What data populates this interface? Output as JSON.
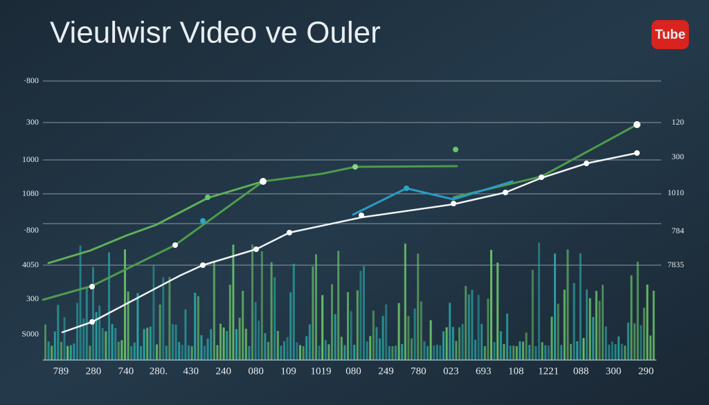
{
  "title": "Vieulwisr Video ve Ouler",
  "logo": "Tube",
  "left_labels": [
    "·800",
    "300",
    "1000",
    "1080",
    "·800",
    "4050",
    "300",
    "S000"
  ],
  "right_labels": [
    "120",
    "300",
    "1010",
    "784",
    "7835"
  ],
  "bottom_labels": [
    "789",
    "280",
    "740",
    "280.",
    "430",
    "240",
    "080",
    "109",
    "1019",
    "080",
    "249",
    "780",
    "023",
    "693",
    "108",
    "1221",
    "088",
    "300",
    "290"
  ]
}
